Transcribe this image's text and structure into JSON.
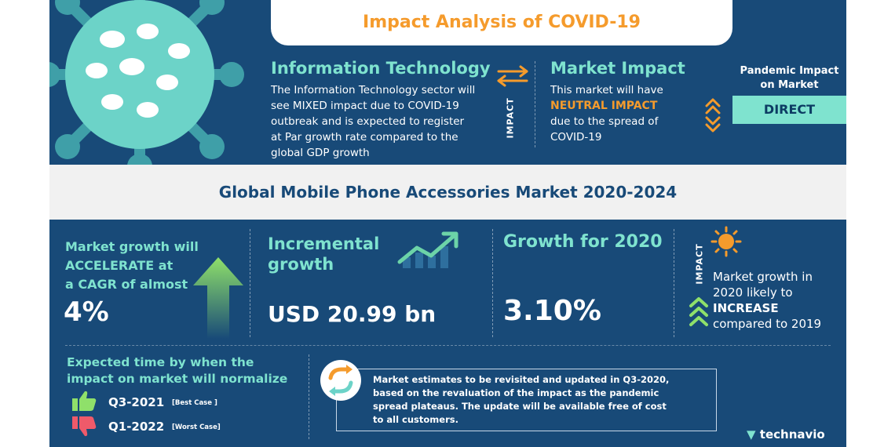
{
  "header": {
    "title": "Impact Analysis of COVID-19"
  },
  "it_section": {
    "heading": "Information Technology",
    "line1": "The Information Technology sector will",
    "line2": "see MIXED  impact due to COVID-19",
    "line3": "outbreak and is expected to register",
    "line4": "at Par growth rate compared to the",
    "line5": "global GDP growth"
  },
  "impact_label": "IMPACT",
  "market_impact": {
    "heading": "Market Impact",
    "line1": "This market will have",
    "highlight": "NEUTRAL IMPACT",
    "line3": "due to the spread of",
    "line4": "COVID-19"
  },
  "pandemic": {
    "head_line1": "Pandemic Impact",
    "head_line2": "on Market",
    "value": "DIRECT"
  },
  "band_title": "Global Mobile Phone Accessories Market 2020-2024",
  "cagr": {
    "line1": "Market growth will",
    "line2": "ACCELERATE at",
    "line3": "a CAGR of almost",
    "value": "4%"
  },
  "incremental": {
    "line1": "Incremental",
    "line2": "growth",
    "value": "USD 20.99 bn"
  },
  "growth2020": {
    "label": "Growth for 2020",
    "value": "3.10%"
  },
  "impact2020": {
    "line1": "Market growth in",
    "line2": "2020 likely to",
    "highlight": "INCREASE",
    "line4": "compared to 2019"
  },
  "normalize": {
    "line1": "Expected time by when the",
    "line2": "impact on market will normalize",
    "best_value": "Q3-2021",
    "best_tag": "[Best Case ]",
    "worst_value": "Q1-2022",
    "worst_tag": "[Worst Case]"
  },
  "note": {
    "line1": "Market estimates to be revisited and updated in Q3-2020,",
    "line2": "based on the revaluation of the impact as the pandemic",
    "line3": "spread plateaus. The update will be available free of cost",
    "line4": "to all customers."
  },
  "brand": "technavio",
  "colors": {
    "navy": "#184a78",
    "mint": "#7fe3cf",
    "orange": "#f59b2c",
    "band": "#f1f1f1"
  },
  "icons": [
    "virus-icon",
    "swap-arrows-icon",
    "expand-arrows-icon",
    "up-arrow-icon",
    "trend-chart-icon",
    "sun-icon",
    "chevrons-up-icon",
    "thumbs-up-icon",
    "thumbs-down-icon",
    "refresh-icon"
  ]
}
